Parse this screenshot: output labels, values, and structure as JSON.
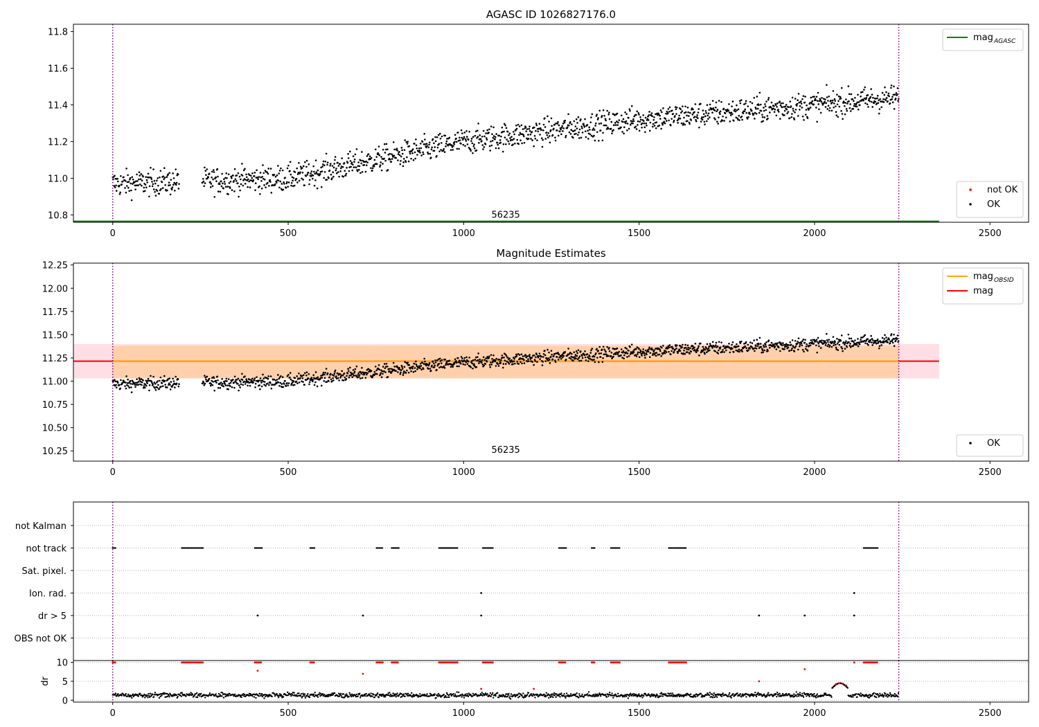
{
  "chart_data": [
    {
      "type": "scatter",
      "title": "AGASC ID 1026827176.0",
      "xlabel": "",
      "ylabel": "",
      "xlim": [
        -112,
        2610
      ],
      "ylim": [
        10.76,
        11.84
      ],
      "xticks": [
        0,
        500,
        1000,
        1500,
        2000,
        2500
      ],
      "yticks": [
        10.8,
        11.0,
        11.2,
        11.4,
        11.6,
        11.8
      ],
      "ytick_labels": [
        "10.8",
        "11.0",
        "11.2",
        "11.4",
        "11.6",
        "11.8"
      ],
      "grid": false,
      "annotations": [
        {
          "text": "56235",
          "x": 1120,
          "y": 10.77
        }
      ],
      "vlines": {
        "x": [
          0,
          2240
        ],
        "color": "#800080",
        "style": "dotted"
      },
      "legend_top": {
        "placement": "top-right",
        "entries": [
          {
            "label": "mag",
            "sub": "AGASC",
            "color": "#008000"
          }
        ]
      },
      "legend_bottom": {
        "placement": "lower-right",
        "entries": [
          {
            "label": "not OK",
            "color": "#ff0000"
          },
          {
            "label": "OK",
            "color": "#000000"
          }
        ]
      },
      "series": [
        {
          "name": "mag AGASC",
          "kind": "line",
          "color": "#008000",
          "x": [
            -112,
            2355
          ],
          "y": [
            10.765,
            10.765
          ]
        },
        {
          "name": "OK",
          "kind": "points",
          "color": "#000000",
          "segments": [
            [
              0,
              190
            ],
            [
              255,
              2240
            ]
          ],
          "trend": {
            "x": [
              0,
              500,
              1000,
              1500,
              2000,
              2240
            ],
            "y": [
              10.97,
              11.0,
              11.2,
              11.32,
              11.4,
              11.44
            ]
          },
          "noise": 0.07
        }
      ]
    },
    {
      "type": "scatter",
      "title": "Magnitude Estimates",
      "xlabel": "",
      "ylabel": "",
      "xlim": [
        -112,
        2610
      ],
      "ylim": [
        10.14,
        12.27
      ],
      "xticks": [
        0,
        500,
        1000,
        1500,
        2000,
        2500
      ],
      "yticks": [
        10.25,
        10.5,
        10.75,
        11.0,
        11.25,
        11.5,
        11.75,
        12.0,
        12.25
      ],
      "ytick_labels": [
        "10.25",
        "10.50",
        "10.75",
        "11.00",
        "11.25",
        "11.50",
        "11.75",
        "12.00",
        "12.25"
      ],
      "grid": false,
      "annotations": [
        {
          "text": "56235",
          "x": 1120,
          "y": 10.2
        }
      ],
      "vlines": {
        "x": [
          0,
          2240
        ],
        "color": "#800080",
        "style": "dotted"
      },
      "legend_top": {
        "placement": "top-right",
        "entries": [
          {
            "label": "mag",
            "sub": "OBSID",
            "color": "#ffa500"
          },
          {
            "label": "mag",
            "sub": "",
            "color": "#ff0000"
          }
        ]
      },
      "legend_bottom": {
        "placement": "lower-right",
        "entries": [
          {
            "label": "OK",
            "color": "#000000"
          }
        ]
      },
      "bands": [
        {
          "x": [
            -112,
            2355
          ],
          "y": [
            11.03,
            11.4
          ],
          "color": "#ffc0cb",
          "opacity": 0.5
        },
        {
          "x": [
            0,
            2240
          ],
          "y": [
            11.03,
            11.38
          ],
          "color": "#ffa500",
          "opacity": 0.25
        }
      ],
      "series": [
        {
          "name": "mag",
          "kind": "line",
          "color": "#ff0000",
          "x": [
            -112,
            2355
          ],
          "y": [
            11.215,
            11.215
          ]
        },
        {
          "name": "mag OBSID",
          "kind": "line",
          "color": "#ffa500",
          "x": [
            0,
            2240
          ],
          "y": [
            11.215,
            11.215
          ]
        },
        {
          "name": "OK",
          "kind": "points",
          "color": "#000000",
          "segments": [
            [
              0,
              190
            ],
            [
              255,
              2240
            ]
          ],
          "trend": {
            "x": [
              0,
              500,
              1000,
              1500,
              2000,
              2240
            ],
            "y": [
              10.97,
              11.0,
              11.2,
              11.32,
              11.4,
              11.44
            ]
          },
          "noise": 0.07
        }
      ]
    },
    {
      "type": "scatter",
      "title": "",
      "xlabel": "",
      "ylabel": "",
      "xlim": [
        -112,
        2610
      ],
      "categories": [
        "not Kalman",
        "not track",
        "Sat. pixel.",
        "Ion. rad.",
        "dr > 5",
        "OBS not OK"
      ],
      "grid": true,
      "vlines": {
        "x": [
          0,
          2240
        ],
        "color": "#800080",
        "style": "dotted"
      },
      "series": [
        {
          "name": "not track",
          "kind": "runs",
          "color": "#000000",
          "runs": [
            [
              0,
              8
            ],
            [
              197,
              258
            ],
            [
              405,
              425
            ],
            [
              563,
              575
            ],
            [
              752,
              770
            ],
            [
              795,
              815
            ],
            [
              930,
              985
            ],
            [
              1055,
              1085
            ],
            [
              1272,
              1292
            ],
            [
              1365,
              1375
            ],
            [
              1420,
              1445
            ],
            [
              1585,
              1635
            ],
            [
              2140,
              2180
            ]
          ]
        },
        {
          "name": "Ion. rad.",
          "kind": "points",
          "color": "#000000",
          "x": [
            1050,
            2113
          ]
        },
        {
          "name": "dr > 5",
          "kind": "points",
          "color": "#000000",
          "x": [
            413,
            713,
            1050,
            1842,
            1972,
            2113
          ]
        }
      ]
    },
    {
      "type": "scatter",
      "title": "",
      "xlabel": "",
      "ylabel": "dr",
      "xlim": [
        -112,
        2610
      ],
      "ylim": [
        -0.5,
        10.5
      ],
      "xticks": [
        0,
        500,
        1000,
        1500,
        2000,
        2500
      ],
      "yticks": [
        0,
        5,
        10
      ],
      "ytick_labels": [
        "0",
        "5",
        "10"
      ],
      "grid": true,
      "vlines": {
        "x": [
          0,
          2240
        ],
        "color": "#800080",
        "style": "dotted"
      },
      "series": [
        {
          "name": "dr",
          "kind": "points",
          "color": "#000000",
          "segments": [
            [
              0,
              2240
            ]
          ],
          "base": 1.3,
          "noise": 0.6
        },
        {
          "name": "not OK at 10",
          "kind": "runs",
          "color": "#ff0000",
          "y": 10,
          "runs": [
            [
              0,
              8
            ],
            [
              197,
              258
            ],
            [
              405,
              425
            ],
            [
              563,
              575
            ],
            [
              752,
              770
            ],
            [
              795,
              815
            ],
            [
              930,
              985
            ],
            [
              1055,
              1085
            ],
            [
              1272,
              1292
            ],
            [
              1365,
              1375
            ],
            [
              1420,
              1445
            ],
            [
              1585,
              1635
            ],
            [
              2140,
              2180
            ]
          ]
        },
        {
          "name": "not OK",
          "kind": "points",
          "color": "#ff0000",
          "x": [
            413,
            713,
            1050,
            1200,
            1842,
            1972,
            2060,
            2070,
            2080,
            2090,
            2113
          ],
          "y": [
            7.8,
            7.0,
            3.0,
            3.0,
            5.0,
            8.2,
            4.2,
            4.5,
            4.4,
            3.9,
            10
          ]
        }
      ]
    }
  ]
}
